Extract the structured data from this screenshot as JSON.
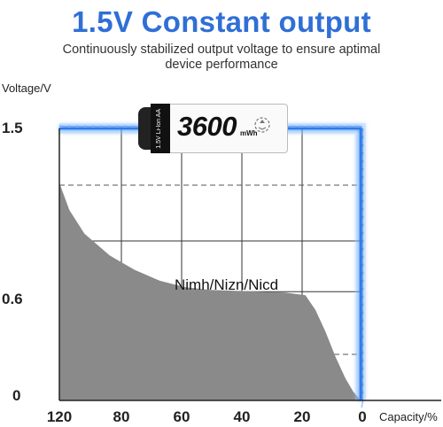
{
  "header": {
    "title": "1.5V Constant output",
    "subtitle_line1": "Continuously stabilized output voltage to ensure aptimal",
    "subtitle_line2": "device performance"
  },
  "battery": {
    "voltage_text": "1.5V Li-Ion AA",
    "capacity_value": "3600",
    "capacity_unit": "mWh",
    "brand_icon": "recycle-icon"
  },
  "chart_data": {
    "type": "area",
    "title": "1.5V Constant output",
    "ylabel": "Voltage/V",
    "xlabel": "Capacity/%",
    "x_ticks": [
      "120",
      "80",
      "60",
      "40",
      "20",
      "0"
    ],
    "y_ticks": [
      "1.5",
      "0.6",
      "0"
    ],
    "xlim": [
      120,
      0
    ],
    "ylim": [
      0,
      1.5
    ],
    "grid": true,
    "series": [
      {
        "name": "Nimh/Nizn/Nicd",
        "color": "#8a8a8a",
        "x": [
          120,
          116,
          110,
          100,
          90,
          80,
          70,
          60,
          50,
          40,
          30,
          22,
          18,
          14,
          10,
          6,
          3,
          0
        ],
        "y": [
          1.2,
          1.05,
          0.92,
          0.8,
          0.72,
          0.66,
          0.625,
          0.61,
          0.605,
          0.6,
          0.595,
          0.58,
          0.5,
          0.38,
          0.24,
          0.12,
          0.05,
          0
        ]
      },
      {
        "name": "",
        "color": "#2b7bea",
        "x": [
          120,
          100,
          80,
          60,
          40,
          20,
          0,
          0
        ],
        "y": [
          1.5,
          1.5,
          1.5,
          1.5,
          1.5,
          1.5,
          1.5,
          0
        ]
      }
    ]
  }
}
